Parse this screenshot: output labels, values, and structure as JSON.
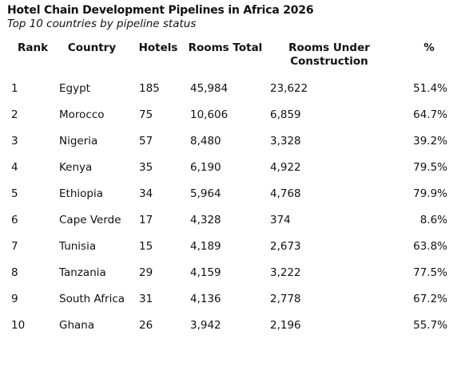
{
  "chart_data": {
    "type": "table",
    "title": "Hotel Chain Development Pipelines in Africa 2026",
    "subtitle": "Top 10 countries by pipeline status",
    "columns": [
      "Rank",
      "Country",
      "Hotels",
      "Rooms Total",
      "Rooms Under Construction",
      "%"
    ],
    "rows": [
      {
        "rank": "1",
        "country": "Egypt",
        "hotels": "185",
        "rooms_total": "45,984",
        "under_construction": "23,622",
        "pct": "51.4%"
      },
      {
        "rank": "2",
        "country": "Morocco",
        "hotels": "75",
        "rooms_total": "10,606",
        "under_construction": "6,859",
        "pct": "64.7%"
      },
      {
        "rank": "3",
        "country": "Nigeria",
        "hotels": "57",
        "rooms_total": "8,480",
        "under_construction": "3,328",
        "pct": "39.2%"
      },
      {
        "rank": "4",
        "country": "Kenya",
        "hotels": "35",
        "rooms_total": "6,190",
        "under_construction": "4,922",
        "pct": "79.5%"
      },
      {
        "rank": "5",
        "country": "Ethiopia",
        "hotels": "34",
        "rooms_total": "5,964",
        "under_construction": "4,768",
        "pct": "79.9%"
      },
      {
        "rank": "6",
        "country": "Cape Verde",
        "hotels": "17",
        "rooms_total": "4,328",
        "under_construction": "374",
        "pct": "8.6%"
      },
      {
        "rank": "7",
        "country": "Tunisia",
        "hotels": "15",
        "rooms_total": "4,189",
        "under_construction": "2,673",
        "pct": "63.8%"
      },
      {
        "rank": "8",
        "country": "Tanzania",
        "hotels": "29",
        "rooms_total": "4,159",
        "under_construction": "3,222",
        "pct": "77.5%"
      },
      {
        "rank": "9",
        "country": "South Africa",
        "hotels": "31",
        "rooms_total": "4,136",
        "under_construction": "2,778",
        "pct": "67.2%"
      },
      {
        "rank": "10",
        "country": "Ghana",
        "hotels": "26",
        "rooms_total": "3,942",
        "under_construction": "2,196",
        "pct": "55.7%"
      }
    ]
  }
}
